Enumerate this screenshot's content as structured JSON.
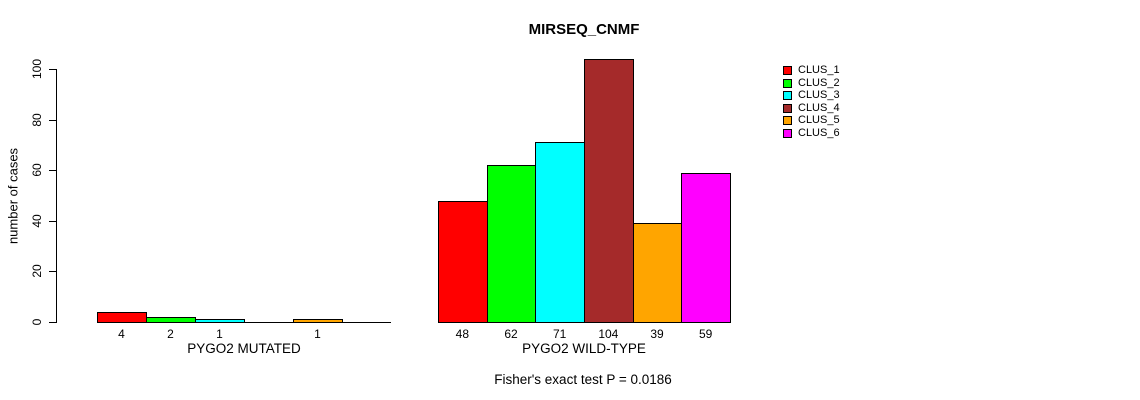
{
  "chart_data": {
    "type": "bar",
    "title": "MIRSEQ_CNMF",
    "ylabel": "number of cases",
    "xlabel": "",
    "ylim": [
      0,
      100
    ],
    "yticks": [
      0,
      20,
      40,
      60,
      80,
      100
    ],
    "grid": false,
    "legend_position": "top-right",
    "series_labels": [
      "CLUS_1",
      "CLUS_2",
      "CLUS_3",
      "CLUS_4",
      "CLUS_5",
      "CLUS_6"
    ],
    "series_colors": [
      "#ff0000",
      "#00ff00",
      "#00ffff",
      "#a52a2a",
      "#ffa500",
      "#ff00ff"
    ],
    "groups": [
      {
        "label": "PYGO2 MUTATED",
        "values": [
          4,
          2,
          1,
          0,
          1,
          0
        ]
      },
      {
        "label": "PYGO2 WILD-TYPE",
        "values": [
          48,
          62,
          71,
          104,
          39,
          59
        ]
      }
    ],
    "hide_zero_value_labels": true,
    "annotation": "Fisher's exact test P = 0.0186",
    "background_color": "#ffffff",
    "axis_color": "#000000"
  }
}
